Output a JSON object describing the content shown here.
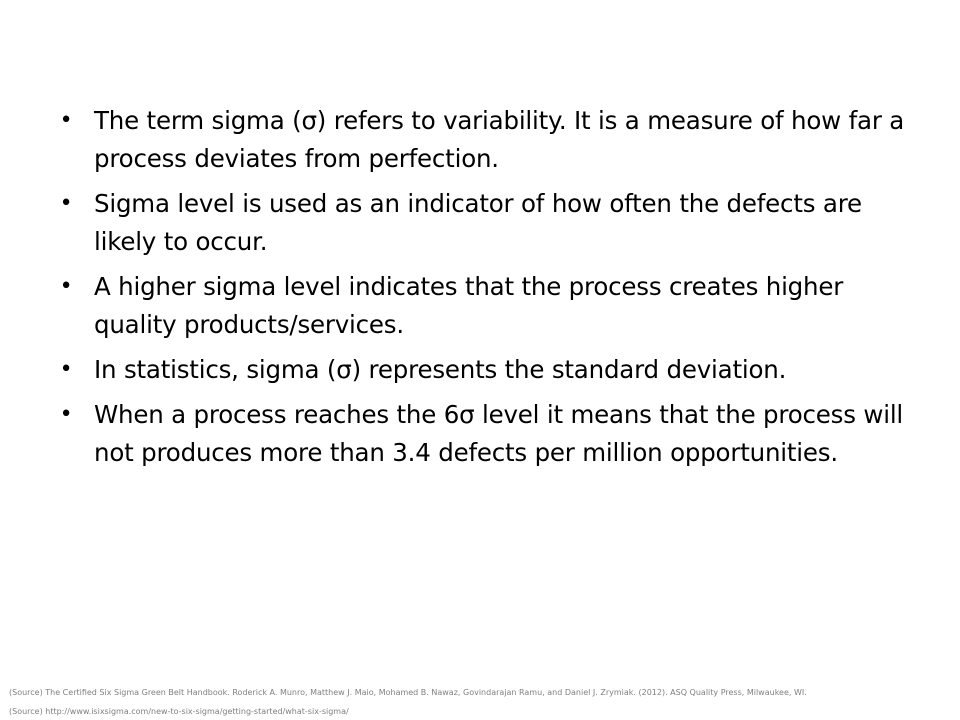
{
  "slide": {
    "bullets": [
      {
        "marker": "•",
        "text": "The term sigma (σ) refers to variability.  It is a measure of how far a process deviates from perfection."
      },
      {
        "marker": "•",
        "text": "Sigma level is used as an indicator of how often the defects are likely to occur."
      },
      {
        "marker": "•",
        "text": "A higher sigma level indicates that the process creates higher quality products/services."
      },
      {
        "marker": "•",
        "text": "In statistics, sigma (σ) represents the standard deviation."
      },
      {
        "marker": "•",
        "text": "When a process reaches the 6σ level it means that the process will not produces more than 3.4 defects per million opportunities."
      }
    ],
    "sources": [
      "(Source) The Certified Six Sigma Green Belt Handbook. Roderick A. Munro, Matthew J. Maio, Mohamed B. Nawaz, Govindarajan Ramu, and Daniel J. Zrymiak. (2012). ASQ Quality Press,  Milwaukee, WI.",
      "(Source) http://www.isixsigma.com/new-to-six-sigma/getting-started/what-six-sigma/"
    ]
  }
}
